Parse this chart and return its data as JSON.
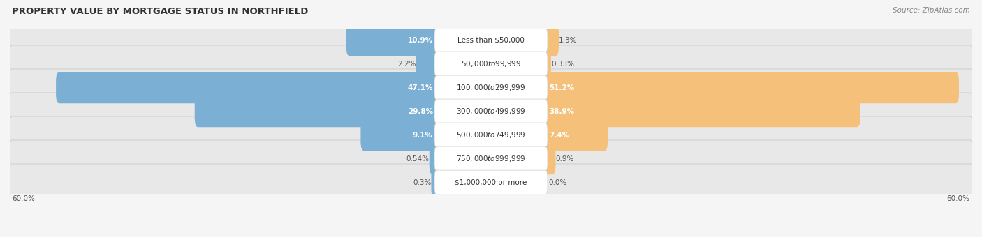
{
  "title": "PROPERTY VALUE BY MORTGAGE STATUS IN NORTHFIELD",
  "source": "Source: ZipAtlas.com",
  "categories": [
    "Less than $50,000",
    "$50,000 to $99,999",
    "$100,000 to $299,999",
    "$300,000 to $499,999",
    "$500,000 to $749,999",
    "$750,000 to $999,999",
    "$1,000,000 or more"
  ],
  "without_mortgage": [
    10.9,
    2.2,
    47.1,
    29.8,
    9.1,
    0.54,
    0.3
  ],
  "with_mortgage": [
    1.3,
    0.33,
    51.2,
    38.9,
    7.4,
    0.9,
    0.0
  ],
  "without_mortgage_color": "#7bafd4",
  "with_mortgage_color": "#f5c07a",
  "axis_limit": 60.0,
  "axis_label_left": "60.0%",
  "axis_label_right": "60.0%",
  "title_fontsize": 9.5,
  "source_fontsize": 7.5,
  "label_fontsize": 7.5,
  "category_fontsize": 7.5,
  "row_bg_color": "#e8e8e8",
  "row_edge_color": "#d0d0d0",
  "page_bg": "#f5f5f5"
}
